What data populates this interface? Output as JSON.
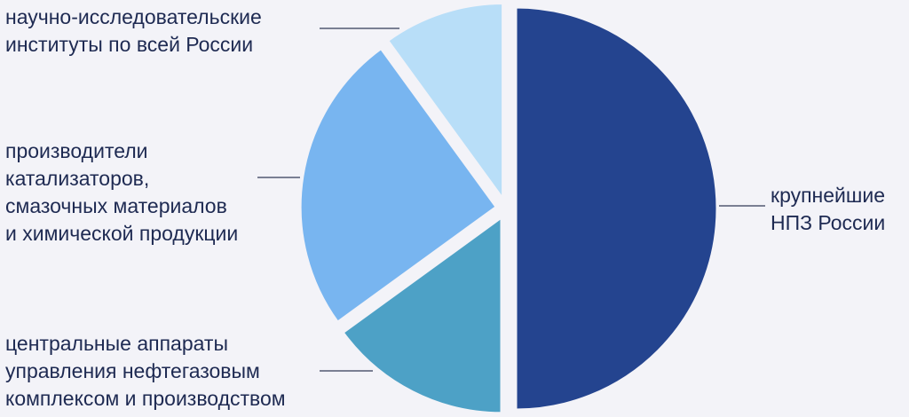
{
  "chart_data": {
    "type": "pie",
    "slices": [
      {
        "label": "крупнейшие\nНПЗ России",
        "value": 50,
        "color": "#24448f"
      },
      {
        "label": "центральные аппараты\nуправления нефтегазовым\nкомплексом и производством",
        "value": 15,
        "color": "#4da1c6"
      },
      {
        "label": "производители\nкатализаторов,\nсмазочных материалов\nи химической продукции",
        "value": 25,
        "color": "#78b5f0"
      },
      {
        "label": "научно-исследовательские\nинституты по всей России",
        "value": 10,
        "color": "#b8def8"
      }
    ]
  }
}
